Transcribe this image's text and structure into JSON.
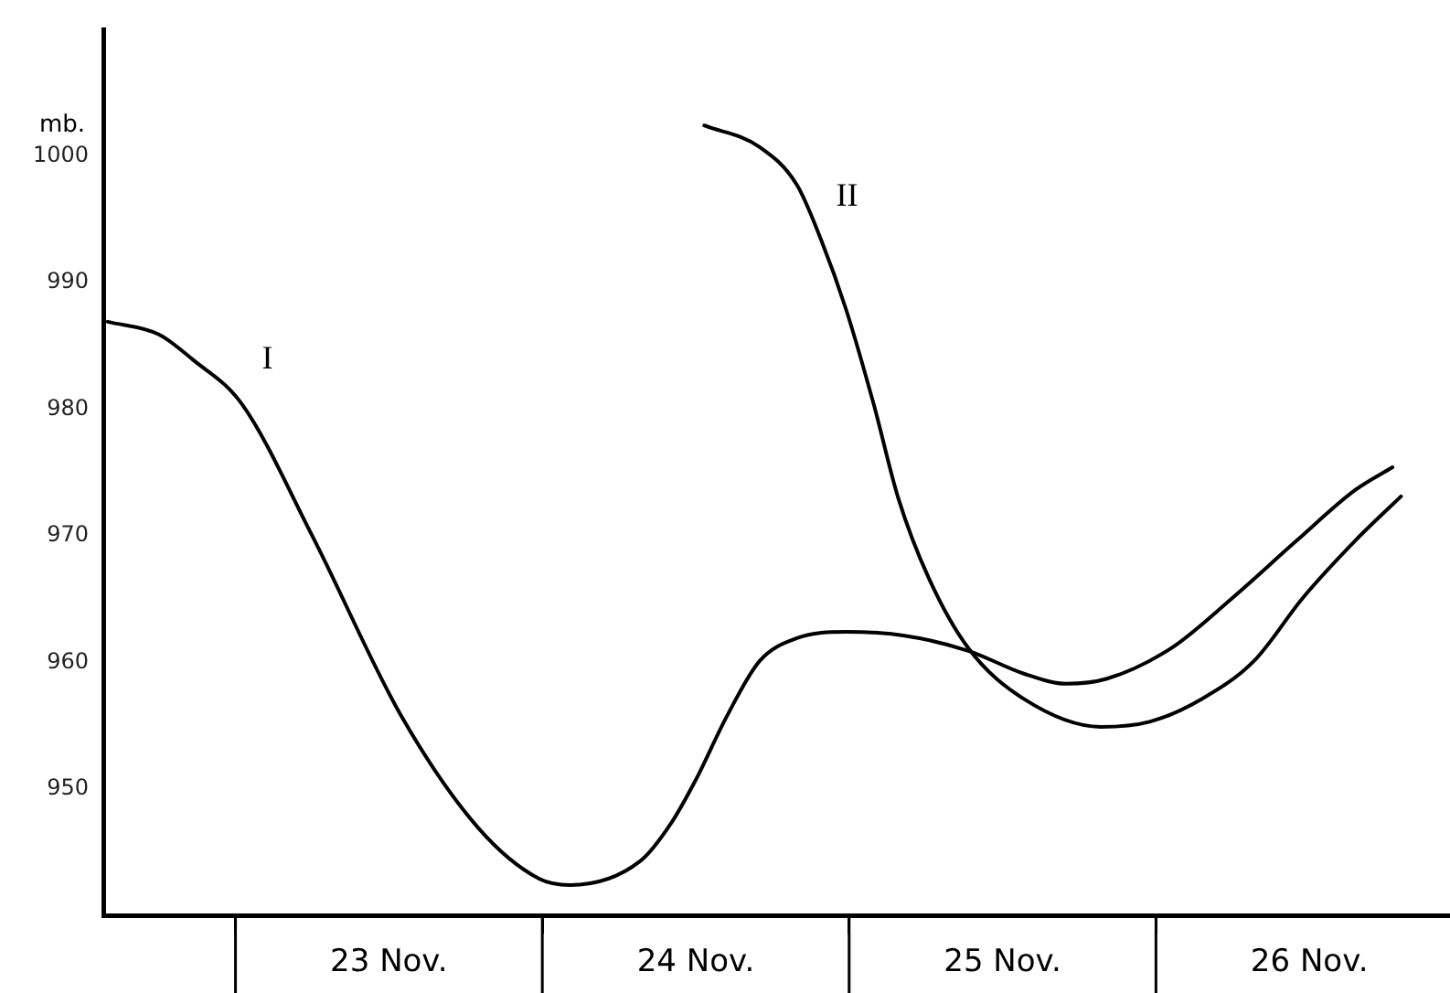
{
  "chart_data": {
    "type": "line",
    "ylabel": "mb.",
    "xlim": [
      "--11-22T13:40",
      "--11-26T23:00"
    ],
    "ylim": [
      940,
      1010
    ],
    "xticks": [
      {
        "value": "--11-23",
        "label": null
      },
      {
        "value": "--11-23T12:00",
        "label": "23 Nov."
      },
      {
        "value": "--11-24",
        "label": null
      },
      {
        "value": "--11-24T12:00",
        "label": "24 Nov."
      },
      {
        "value": "--11-25",
        "label": null
      },
      {
        "value": "--11-25T12:00",
        "label": "25 Nov."
      },
      {
        "value": "--11-26",
        "label": null
      },
      {
        "value": "--11-26T12:00",
        "label": "26 Nov."
      }
    ],
    "yticks": [
      950,
      960,
      970,
      980,
      990,
      1000
    ],
    "grid": false,
    "legend": false,
    "marker": "none",
    "line_style": "solid",
    "series": [
      {
        "name": "I",
        "color": "#000000",
        "x": [
          "--11-22T14:00",
          "--11-22T18:00",
          "--11-22T20:40",
          "--11-23T00:30",
          "--11-23T06:00",
          "--11-23T13:00",
          "--11-23T19:00",
          "--11-23T23:45",
          "--11-24T02:10",
          "--11-24T07:40",
          "--11-24T10:05",
          "--11-24T12:00",
          "--11-24T14:25",
          "--11-24T17:00",
          "--11-24T19:55",
          "--11-24T23:45",
          "--11-25T04:20",
          "--11-25T09:20",
          "--11-25T13:40",
          "--11-25T17:00",
          "--11-25T20:10",
          "--11-26T01:10",
          "--11-26T06:00",
          "--11-26T11:00",
          "--11-26T15:35",
          "--11-26T18:30"
        ],
        "values": [
          986.9,
          985.9,
          983.9,
          980.4,
          970,
          955.7,
          946.9,
          942.9,
          942.4,
          944.3,
          947.3,
          950.7,
          955.7,
          960.1,
          961.9,
          962.4,
          962.1,
          960.9,
          959.1,
          958.3,
          958.7,
          961.1,
          965.1,
          969.6,
          973.6,
          975.4
        ]
      },
      {
        "name": "II",
        "color": "#000000",
        "x": [
          "--11-24T12:40",
          "--11-24T17:00",
          "--11-24T19:55",
          "--11-24T21:50",
          "--11-24T23:45",
          "--11-25T01:55",
          "--11-25T03:50",
          "--11-25T06:15",
          "--11-25T09:20",
          "--11-25T13:40",
          "--11-25T19:40",
          "--11-25T23:30",
          "--11-26T03:35",
          "--11-26T07:40",
          "--11-26T11:30",
          "--11-26T15:35",
          "--11-26T19:10"
        ],
        "values": [
          1002.4,
          1000.7,
          997.7,
          993.3,
          987.9,
          980.4,
          973,
          966.6,
          961.1,
          957.1,
          954.9,
          955.3,
          957.1,
          960.1,
          965.1,
          969.6,
          973.1
        ]
      }
    ]
  }
}
